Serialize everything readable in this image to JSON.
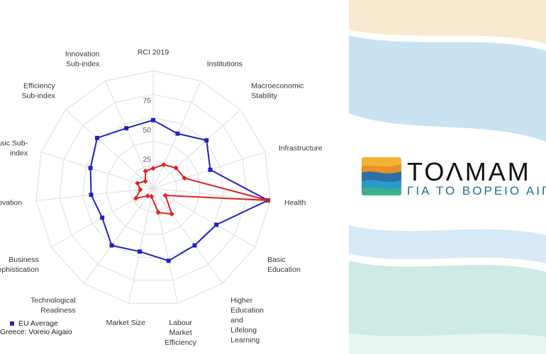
{
  "chart_data": {
    "type": "radar",
    "axes": [
      "RCI 2019",
      "Institutions",
      "Macroeconomic Stability",
      "Infrastructure",
      "Health",
      "Basic Education",
      "Higher Education and Lifelong Learning",
      "Labour Market Efficiency",
      "Market Size",
      "Technological Readiness",
      "Business Sophistication",
      "Innovation",
      "Basic Sub-index",
      "Efficiency Sub-index",
      "Innovation Sub-index"
    ],
    "axis_label_lines": [
      [
        "RCI 2019"
      ],
      [
        "Institutions"
      ],
      [
        "Macroeconomic",
        "Stability"
      ],
      [
        "Infrastructure"
      ],
      [
        "Health"
      ],
      [
        "Basic",
        "Education"
      ],
      [
        "Higher",
        "Education",
        "and",
        "Lifelong",
        "Learning"
      ],
      [
        "Labour",
        "Market",
        "Efficiency"
      ],
      [
        "Market Size"
      ],
      [
        "Technological",
        "Readiness"
      ],
      [
        "Business",
        "Sophistication"
      ],
      [
        "Innovation"
      ],
      [
        "Basic Sub-",
        "index"
      ],
      [
        "Efficiency",
        "Sub-index"
      ],
      [
        "Innovation",
        "Sub-index"
      ]
    ],
    "radial_ticks": [
      25,
      50,
      75
    ],
    "rlim": [
      0,
      100
    ],
    "grid": true,
    "series": [
      {
        "name": "EU Average",
        "color": "#2222bb",
        "values": [
          58,
          51,
          61,
          51,
          98,
          62,
          60,
          63,
          55,
          60,
          50,
          53,
          56,
          64,
          56
        ]
      },
      {
        "name": "Greece: Voreio Aigaio",
        "color": "#dd2222",
        "values": [
          17,
          22,
          26,
          28,
          98,
          12,
          27,
          21,
          7,
          8,
          17,
          11,
          14,
          9,
          16
        ]
      }
    ],
    "legend_position": "bottom-left"
  },
  "logo": {
    "title": "ΤΟΛΜΑΜ",
    "subtitle": "ΓΙΑ ΤΟ ΒΟΡΕΙΟ ΑΙΓΑ"
  },
  "colors": {
    "wave_beige": "#f7ead0",
    "wave_blue": "#c9e2f1",
    "wave_teal": "#cdeae4"
  }
}
